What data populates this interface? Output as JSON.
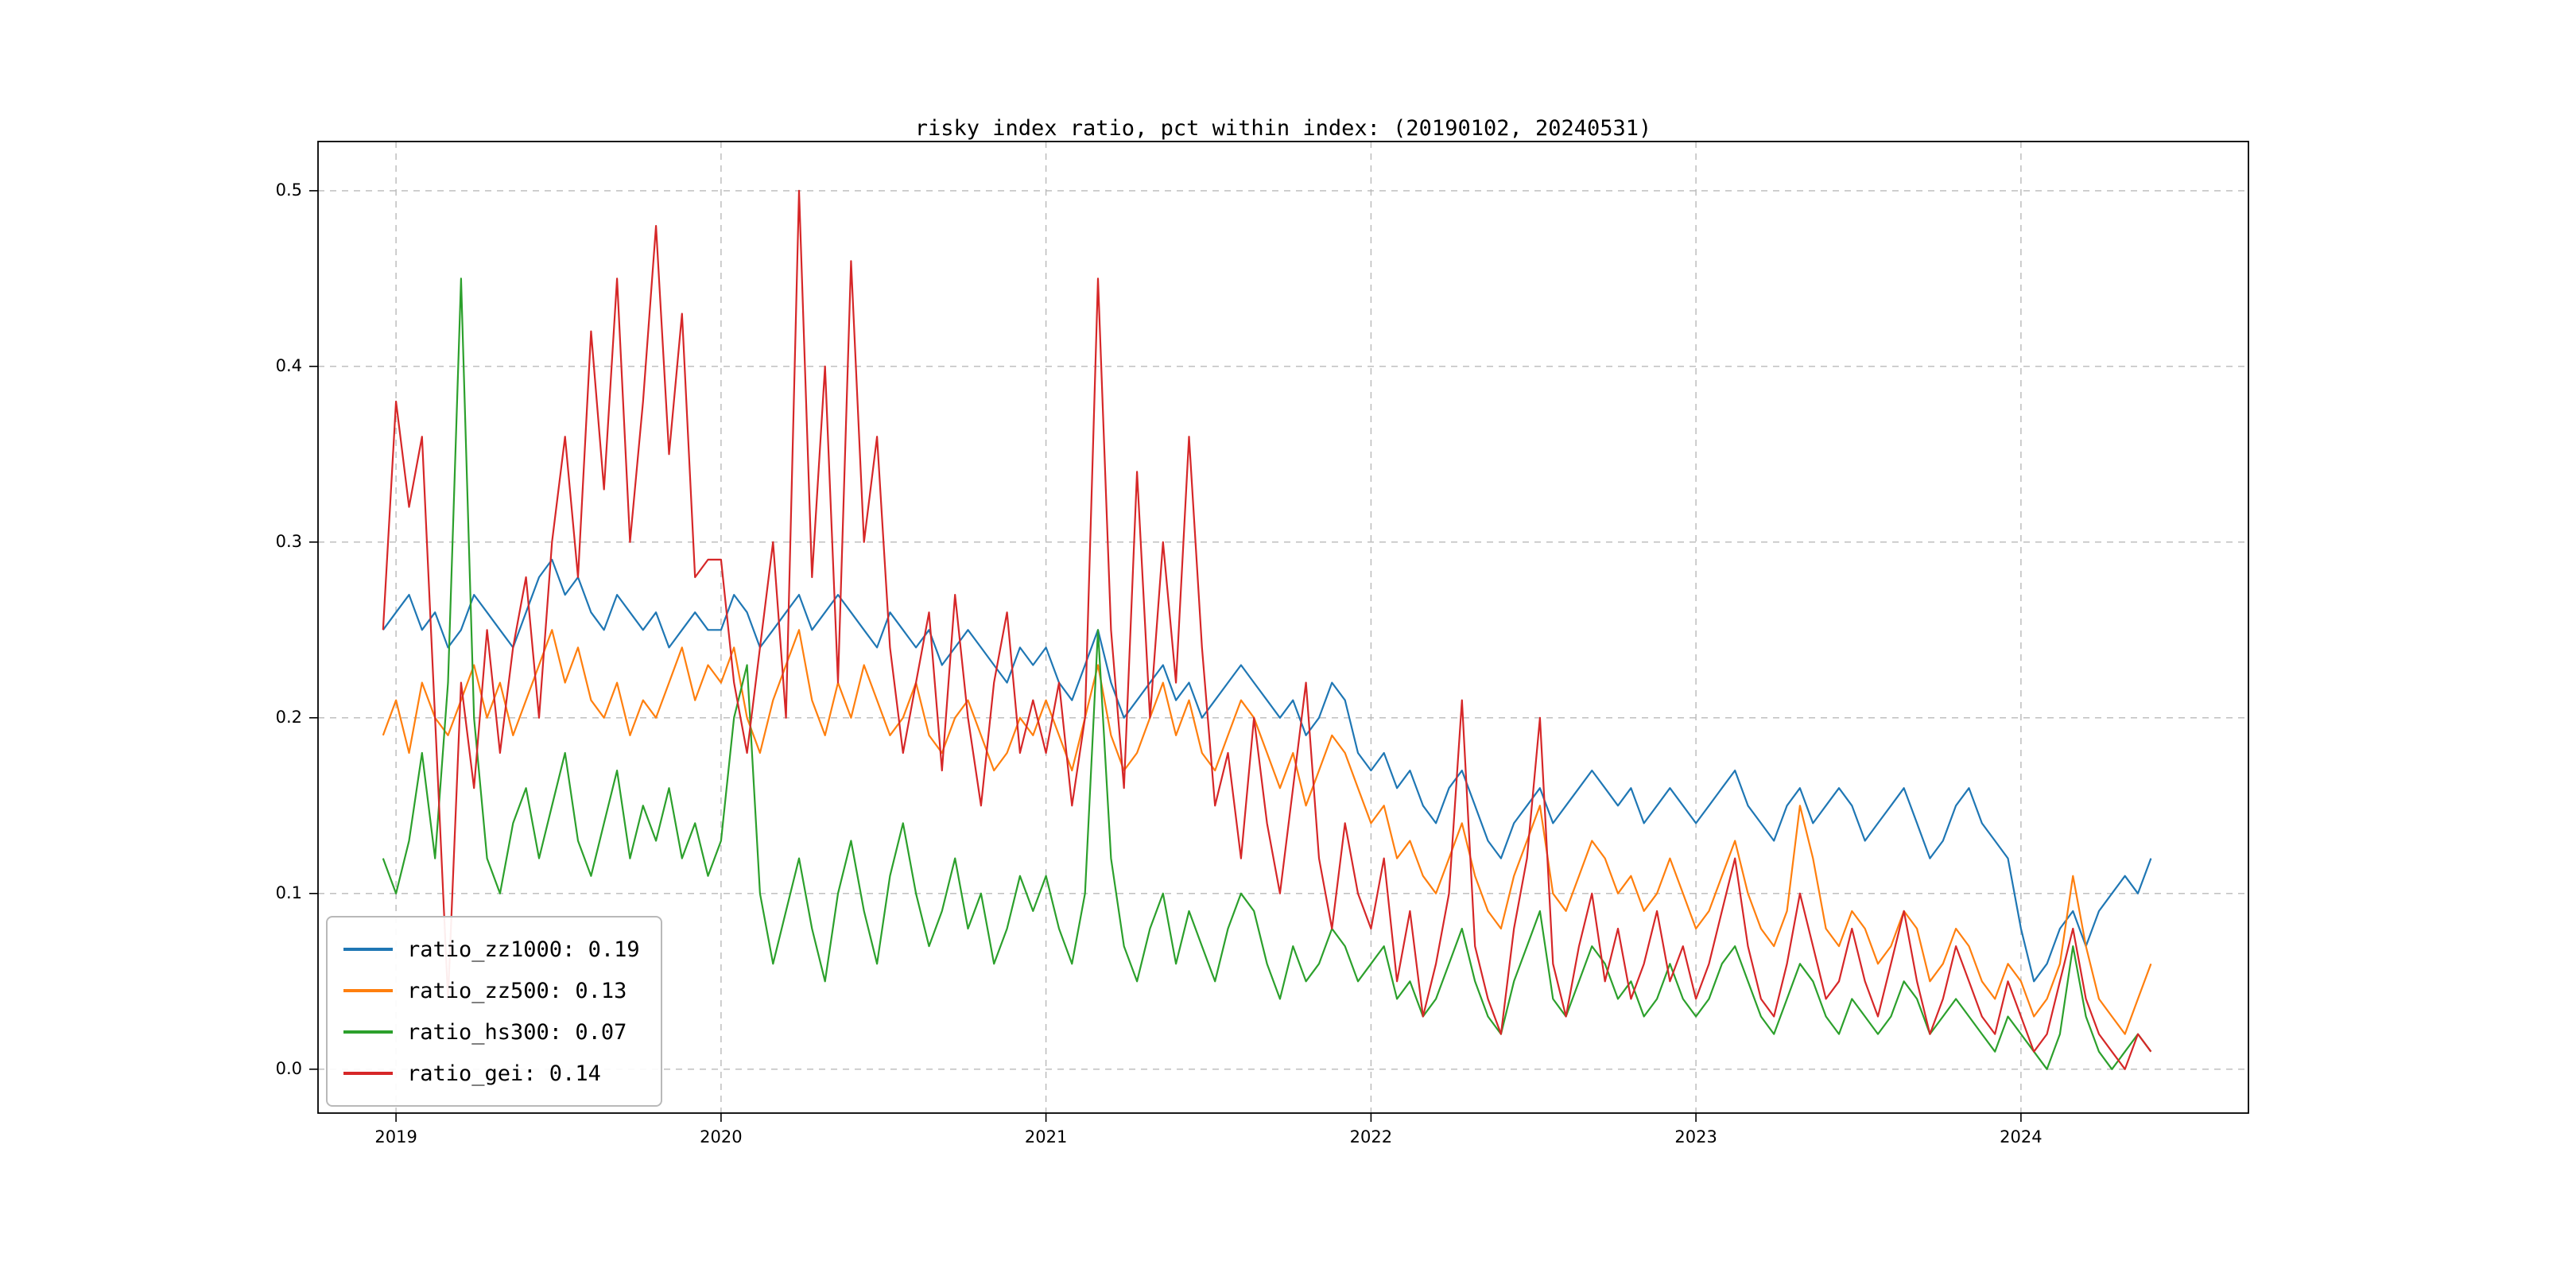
{
  "figure": {
    "background": "#ffffff"
  },
  "chart_data": {
    "type": "line",
    "title": "risky index ratio, pct within index: (20190102, 20240531)",
    "xlabel": "",
    "ylabel": "",
    "xlim": [
      2018.76,
      2024.7
    ],
    "ylim": [
      -0.025,
      0.528
    ],
    "xticks": [
      2019,
      2020,
      2021,
      2022,
      2023,
      2024
    ],
    "xtick_labels": [
      "2019",
      "2020",
      "2021",
      "2022",
      "2023",
      "2024"
    ],
    "yticks": [
      0.0,
      0.1,
      0.2,
      0.3,
      0.4,
      0.5
    ],
    "ytick_labels": [
      "0.0",
      "0.1",
      "0.2",
      "0.3",
      "0.4",
      "0.5"
    ],
    "grid": {
      "on": true,
      "style": "dashed",
      "color": "#b9b9b9"
    },
    "legend": {
      "position": "lower-left"
    },
    "x_start": 2018.96,
    "x_step": 0.04,
    "series": [
      {
        "name": "ratio_zz1000",
        "legend_label": "ratio_zz1000: 0.19",
        "color": "#1f77b4",
        "y": [
          0.25,
          0.26,
          0.27,
          0.25,
          0.26,
          0.24,
          0.25,
          0.27,
          0.26,
          0.25,
          0.24,
          0.26,
          0.28,
          0.29,
          0.27,
          0.28,
          0.26,
          0.25,
          0.27,
          0.26,
          0.25,
          0.26,
          0.24,
          0.25,
          0.26,
          0.25,
          0.25,
          0.27,
          0.26,
          0.24,
          0.25,
          0.26,
          0.27,
          0.25,
          0.26,
          0.27,
          0.26,
          0.25,
          0.24,
          0.26,
          0.25,
          0.24,
          0.25,
          0.23,
          0.24,
          0.25,
          0.24,
          0.23,
          0.22,
          0.24,
          0.23,
          0.24,
          0.22,
          0.21,
          0.23,
          0.25,
          0.22,
          0.2,
          0.21,
          0.22,
          0.23,
          0.21,
          0.22,
          0.2,
          0.21,
          0.22,
          0.23,
          0.22,
          0.21,
          0.2,
          0.21,
          0.19,
          0.2,
          0.22,
          0.21,
          0.18,
          0.17,
          0.18,
          0.16,
          0.17,
          0.15,
          0.14,
          0.16,
          0.17,
          0.15,
          0.13,
          0.12,
          0.14,
          0.15,
          0.16,
          0.14,
          0.15,
          0.16,
          0.17,
          0.16,
          0.15,
          0.16,
          0.14,
          0.15,
          0.16,
          0.15,
          0.14,
          0.15,
          0.16,
          0.17,
          0.15,
          0.14,
          0.13,
          0.15,
          0.16,
          0.14,
          0.15,
          0.16,
          0.15,
          0.13,
          0.14,
          0.15,
          0.16,
          0.14,
          0.12,
          0.13,
          0.15,
          0.16,
          0.14,
          0.13,
          0.12,
          0.08,
          0.05,
          0.06,
          0.08,
          0.09,
          0.07,
          0.09,
          0.1,
          0.11,
          0.1,
          0.12
        ]
      },
      {
        "name": "ratio_zz500",
        "legend_label": "ratio_zz500: 0.13",
        "color": "#ff7f0e",
        "y": [
          0.19,
          0.21,
          0.18,
          0.22,
          0.2,
          0.19,
          0.21,
          0.23,
          0.2,
          0.22,
          0.19,
          0.21,
          0.23,
          0.25,
          0.22,
          0.24,
          0.21,
          0.2,
          0.22,
          0.19,
          0.21,
          0.2,
          0.22,
          0.24,
          0.21,
          0.23,
          0.22,
          0.24,
          0.2,
          0.18,
          0.21,
          0.23,
          0.25,
          0.21,
          0.19,
          0.22,
          0.2,
          0.23,
          0.21,
          0.19,
          0.2,
          0.22,
          0.19,
          0.18,
          0.2,
          0.21,
          0.19,
          0.17,
          0.18,
          0.2,
          0.19,
          0.21,
          0.19,
          0.17,
          0.2,
          0.23,
          0.19,
          0.17,
          0.18,
          0.2,
          0.22,
          0.19,
          0.21,
          0.18,
          0.17,
          0.19,
          0.21,
          0.2,
          0.18,
          0.16,
          0.18,
          0.15,
          0.17,
          0.19,
          0.18,
          0.16,
          0.14,
          0.15,
          0.12,
          0.13,
          0.11,
          0.1,
          0.12,
          0.14,
          0.11,
          0.09,
          0.08,
          0.11,
          0.13,
          0.15,
          0.1,
          0.09,
          0.11,
          0.13,
          0.12,
          0.1,
          0.11,
          0.09,
          0.1,
          0.12,
          0.1,
          0.08,
          0.09,
          0.11,
          0.13,
          0.1,
          0.08,
          0.07,
          0.09,
          0.15,
          0.12,
          0.08,
          0.07,
          0.09,
          0.08,
          0.06,
          0.07,
          0.09,
          0.08,
          0.05,
          0.06,
          0.08,
          0.07,
          0.05,
          0.04,
          0.06,
          0.05,
          0.03,
          0.04,
          0.06,
          0.11,
          0.07,
          0.04,
          0.03,
          0.02,
          0.04,
          0.06
        ]
      },
      {
        "name": "ratio_hs300",
        "legend_label": "ratio_hs300: 0.07",
        "color": "#2ca02c",
        "y": [
          0.12,
          0.1,
          0.13,
          0.18,
          0.12,
          0.22,
          0.45,
          0.2,
          0.12,
          0.1,
          0.14,
          0.16,
          0.12,
          0.15,
          0.18,
          0.13,
          0.11,
          0.14,
          0.17,
          0.12,
          0.15,
          0.13,
          0.16,
          0.12,
          0.14,
          0.11,
          0.13,
          0.2,
          0.23,
          0.1,
          0.06,
          0.09,
          0.12,
          0.08,
          0.05,
          0.1,
          0.13,
          0.09,
          0.06,
          0.11,
          0.14,
          0.1,
          0.07,
          0.09,
          0.12,
          0.08,
          0.1,
          0.06,
          0.08,
          0.11,
          0.09,
          0.11,
          0.08,
          0.06,
          0.1,
          0.25,
          0.12,
          0.07,
          0.05,
          0.08,
          0.1,
          0.06,
          0.09,
          0.07,
          0.05,
          0.08,
          0.1,
          0.09,
          0.06,
          0.04,
          0.07,
          0.05,
          0.06,
          0.08,
          0.07,
          0.05,
          0.06,
          0.07,
          0.04,
          0.05,
          0.03,
          0.04,
          0.06,
          0.08,
          0.05,
          0.03,
          0.02,
          0.05,
          0.07,
          0.09,
          0.04,
          0.03,
          0.05,
          0.07,
          0.06,
          0.04,
          0.05,
          0.03,
          0.04,
          0.06,
          0.04,
          0.03,
          0.04,
          0.06,
          0.07,
          0.05,
          0.03,
          0.02,
          0.04,
          0.06,
          0.05,
          0.03,
          0.02,
          0.04,
          0.03,
          0.02,
          0.03,
          0.05,
          0.04,
          0.02,
          0.03,
          0.04,
          0.03,
          0.02,
          0.01,
          0.03,
          0.02,
          0.01,
          0.0,
          0.02,
          0.07,
          0.03,
          0.01,
          0.0,
          0.01,
          0.02,
          0.01
        ]
      },
      {
        "name": "ratio_gei",
        "legend_label": "ratio_gei: 0.14",
        "color": "#d62728",
        "y": [
          0.25,
          0.38,
          0.32,
          0.36,
          0.2,
          0.04,
          0.22,
          0.16,
          0.25,
          0.18,
          0.24,
          0.28,
          0.2,
          0.3,
          0.36,
          0.28,
          0.42,
          0.33,
          0.45,
          0.3,
          0.38,
          0.48,
          0.35,
          0.43,
          0.28,
          0.29,
          0.29,
          0.22,
          0.18,
          0.24,
          0.3,
          0.2,
          0.5,
          0.28,
          0.4,
          0.22,
          0.46,
          0.3,
          0.36,
          0.24,
          0.18,
          0.22,
          0.26,
          0.17,
          0.27,
          0.2,
          0.15,
          0.22,
          0.26,
          0.18,
          0.21,
          0.18,
          0.22,
          0.15,
          0.2,
          0.45,
          0.25,
          0.16,
          0.34,
          0.2,
          0.3,
          0.22,
          0.36,
          0.24,
          0.15,
          0.18,
          0.12,
          0.2,
          0.14,
          0.1,
          0.16,
          0.22,
          0.12,
          0.08,
          0.14,
          0.1,
          0.08,
          0.12,
          0.05,
          0.09,
          0.03,
          0.06,
          0.1,
          0.21,
          0.07,
          0.04,
          0.02,
          0.08,
          0.12,
          0.2,
          0.06,
          0.03,
          0.07,
          0.1,
          0.05,
          0.08,
          0.04,
          0.06,
          0.09,
          0.05,
          0.07,
          0.04,
          0.06,
          0.09,
          0.12,
          0.07,
          0.04,
          0.03,
          0.06,
          0.1,
          0.07,
          0.04,
          0.05,
          0.08,
          0.05,
          0.03,
          0.06,
          0.09,
          0.05,
          0.02,
          0.04,
          0.07,
          0.05,
          0.03,
          0.02,
          0.05,
          0.03,
          0.01,
          0.02,
          0.05,
          0.08,
          0.04,
          0.02,
          0.01,
          0.0,
          0.02,
          0.01
        ]
      }
    ]
  }
}
